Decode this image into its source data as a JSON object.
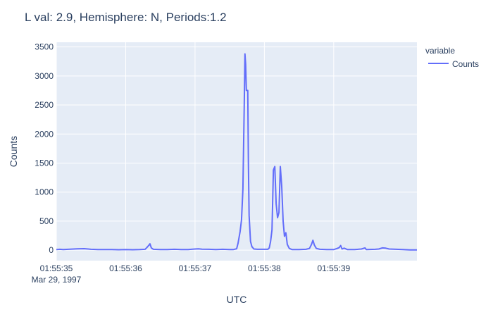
{
  "chart_data": {
    "type": "line",
    "title": "L val: 2.9, Hemisphere: N, Periods:1.2",
    "xlabel": "UTC",
    "ylabel": "Counts",
    "x_date_label": "Mar 29, 1997",
    "x_ticks": [
      {
        "t": 0,
        "label": "01:55:35"
      },
      {
        "t": 1,
        "label": "01:55:36"
      },
      {
        "t": 2,
        "label": "01:55:37"
      },
      {
        "t": 3,
        "label": "01:55:38"
      },
      {
        "t": 4,
        "label": "01:55:39"
      }
    ],
    "y_ticks": [
      0,
      500,
      1000,
      1500,
      2000,
      2500,
      3000,
      3500
    ],
    "xlim": [
      0,
      5.2
    ],
    "ylim": [
      -180,
      3580
    ],
    "legend": {
      "title": "variable",
      "position": "top-right"
    },
    "series": [
      {
        "name": "Counts",
        "color": "#636efa",
        "points": [
          [
            0,
            10
          ],
          [
            0.05,
            15
          ],
          [
            0.1,
            12
          ],
          [
            0.2,
            18
          ],
          [
            0.3,
            22
          ],
          [
            0.4,
            26
          ],
          [
            0.5,
            15
          ],
          [
            0.6,
            12
          ],
          [
            0.7,
            10
          ],
          [
            0.8,
            10
          ],
          [
            0.9,
            8
          ],
          [
            1.0,
            10
          ],
          [
            1.1,
            8
          ],
          [
            1.2,
            10
          ],
          [
            1.28,
            15
          ],
          [
            1.3,
            40
          ],
          [
            1.33,
            80
          ],
          [
            1.35,
            110
          ],
          [
            1.37,
            40
          ],
          [
            1.4,
            15
          ],
          [
            1.5,
            10
          ],
          [
            1.6,
            10
          ],
          [
            1.7,
            15
          ],
          [
            1.8,
            12
          ],
          [
            1.9,
            10
          ],
          [
            2.0,
            20
          ],
          [
            2.05,
            22
          ],
          [
            2.1,
            18
          ],
          [
            2.2,
            15
          ],
          [
            2.3,
            12
          ],
          [
            2.4,
            15
          ],
          [
            2.5,
            10
          ],
          [
            2.55,
            10
          ],
          [
            2.6,
            25
          ],
          [
            2.62,
            120
          ],
          [
            2.65,
            320
          ],
          [
            2.67,
            520
          ],
          [
            2.69,
            1050
          ],
          [
            2.71,
            2500
          ],
          [
            2.72,
            3380
          ],
          [
            2.73,
            3200
          ],
          [
            2.74,
            2750
          ],
          [
            2.76,
            2750
          ],
          [
            2.77,
            1500
          ],
          [
            2.78,
            600
          ],
          [
            2.8,
            150
          ],
          [
            2.82,
            60
          ],
          [
            2.85,
            20
          ],
          [
            2.9,
            15
          ],
          [
            3.0,
            15
          ],
          [
            3.05,
            15
          ],
          [
            3.07,
            40
          ],
          [
            3.09,
            150
          ],
          [
            3.11,
            350
          ],
          [
            3.13,
            1380
          ],
          [
            3.15,
            1440
          ],
          [
            3.17,
            800
          ],
          [
            3.19,
            560
          ],
          [
            3.21,
            650
          ],
          [
            3.23,
            1440
          ],
          [
            3.25,
            1100
          ],
          [
            3.27,
            500
          ],
          [
            3.29,
            240
          ],
          [
            3.31,
            300
          ],
          [
            3.33,
            100
          ],
          [
            3.36,
            30
          ],
          [
            3.4,
            10
          ],
          [
            3.5,
            10
          ],
          [
            3.6,
            15
          ],
          [
            3.65,
            30
          ],
          [
            3.68,
            100
          ],
          [
            3.7,
            170
          ],
          [
            3.72,
            90
          ],
          [
            3.75,
            30
          ],
          [
            3.8,
            15
          ],
          [
            3.9,
            10
          ],
          [
            4.0,
            10
          ],
          [
            4.05,
            30
          ],
          [
            4.08,
            45
          ],
          [
            4.1,
            80
          ],
          [
            4.12,
            20
          ],
          [
            4.15,
            35
          ],
          [
            4.2,
            10
          ],
          [
            4.3,
            10
          ],
          [
            4.4,
            20
          ],
          [
            4.45,
            40
          ],
          [
            4.47,
            10
          ],
          [
            4.6,
            15
          ],
          [
            4.65,
            20
          ],
          [
            4.7,
            40
          ],
          [
            4.75,
            35
          ],
          [
            4.8,
            20
          ],
          [
            4.9,
            15
          ],
          [
            5.0,
            10
          ],
          [
            5.1,
            5
          ],
          [
            5.2,
            5
          ]
        ]
      }
    ]
  }
}
